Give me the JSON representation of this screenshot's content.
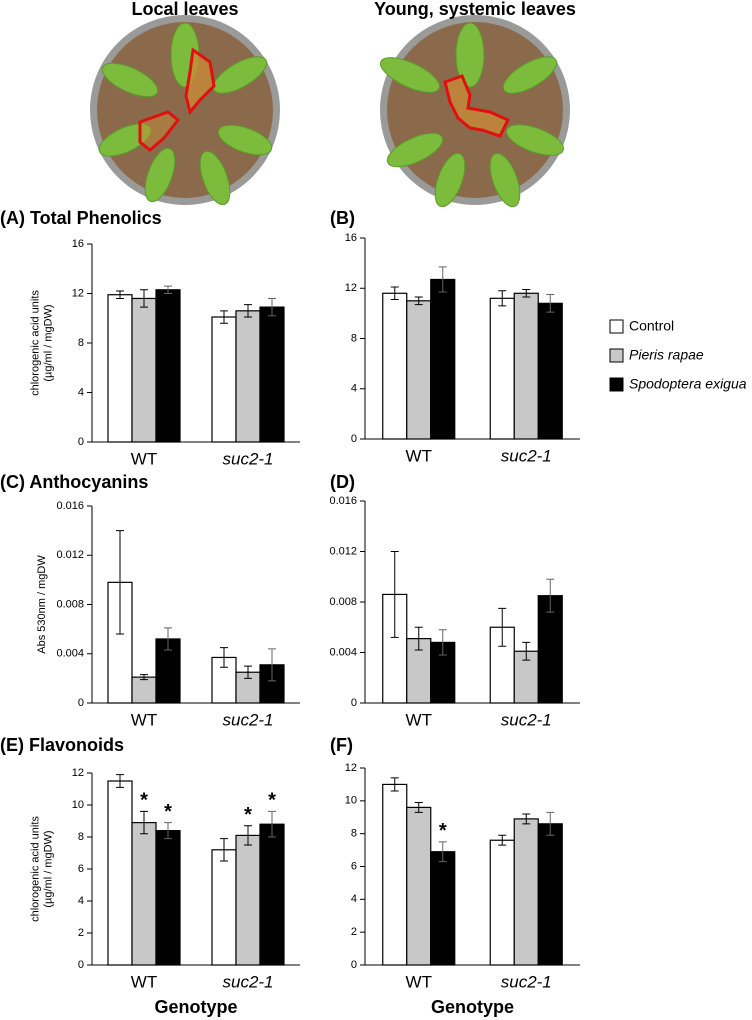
{
  "photos": [
    {
      "title": "Local leaves"
    },
    {
      "title": "Young, systemic leaves"
    }
  ],
  "legend": [
    {
      "name": "Control",
      "color": "#ffffff"
    },
    {
      "name": "Pieris rapae",
      "color": "#c8c8c8"
    },
    {
      "name": "Spodoptera exigua",
      "color": "#000000"
    }
  ],
  "chart_data": [
    {
      "type": "bar",
      "title": "(A) Total Phenolics",
      "ylabel": [
        "chlorogenic acid units",
        "(µg/ml / mgDW)"
      ],
      "categories": [
        "WT",
        "suc2-1"
      ],
      "ylim": [
        0,
        16
      ],
      "yticks": [
        0,
        4,
        8,
        12,
        16
      ],
      "series": [
        {
          "color": "#ffffff",
          "values": [
            11.9,
            10.1
          ],
          "errors": [
            0.3,
            0.5
          ]
        },
        {
          "color": "#c8c8c8",
          "values": [
            11.6,
            10.6
          ],
          "errors": [
            0.7,
            0.5
          ]
        },
        {
          "color": "#000000",
          "values": [
            12.3,
            10.9
          ],
          "errors": [
            0.3,
            0.7
          ]
        }
      ]
    },
    {
      "type": "bar",
      "title": "(B)",
      "categories": [
        "WT",
        "suc2-1"
      ],
      "ylim": [
        0,
        16
      ],
      "yticks": [
        0,
        4,
        8,
        12,
        16
      ],
      "series": [
        {
          "color": "#ffffff",
          "values": [
            11.6,
            11.2
          ],
          "errors": [
            0.5,
            0.6
          ]
        },
        {
          "color": "#c8c8c8",
          "values": [
            11.0,
            11.6
          ],
          "errors": [
            0.3,
            0.3
          ]
        },
        {
          "color": "#000000",
          "values": [
            12.7,
            10.8
          ],
          "errors": [
            1.0,
            0.7
          ]
        }
      ]
    },
    {
      "type": "bar",
      "title": "(C) Anthocyanins",
      "ylabel": [
        "Abs 530nm / mgDW"
      ],
      "categories": [
        "WT",
        "suc2-1"
      ],
      "ylim": [
        0,
        0.016
      ],
      "yticks": [
        0,
        0.004,
        0.008,
        0.012,
        0.016
      ],
      "series": [
        {
          "color": "#ffffff",
          "values": [
            0.0098,
            0.0037
          ],
          "errors": [
            0.0042,
            0.0008
          ]
        },
        {
          "color": "#c8c8c8",
          "values": [
            0.0021,
            0.0025
          ],
          "errors": [
            0.0002,
            0.0005
          ]
        },
        {
          "color": "#000000",
          "values": [
            0.0052,
            0.0031
          ],
          "errors": [
            0.0009,
            0.0013
          ]
        }
      ]
    },
    {
      "type": "bar",
      "title": "(D)",
      "categories": [
        "WT",
        "suc2-1"
      ],
      "ylim": [
        0,
        0.016
      ],
      "yticks": [
        0,
        0.004,
        0.008,
        0.012,
        0.016
      ],
      "series": [
        {
          "color": "#ffffff",
          "values": [
            0.0086,
            0.006
          ],
          "errors": [
            0.0034,
            0.0015
          ]
        },
        {
          "color": "#c8c8c8",
          "values": [
            0.0051,
            0.0041
          ],
          "errors": [
            0.0009,
            0.0007
          ]
        },
        {
          "color": "#000000",
          "values": [
            0.0048,
            0.0085
          ],
          "errors": [
            0.001,
            0.0013
          ]
        }
      ]
    },
    {
      "type": "bar",
      "title": "(E) Flavonoids",
      "ylabel": [
        "chlorogenic acid units",
        "(µg/ml / mgDW)"
      ],
      "xlabel": "Genotype",
      "categories": [
        "WT",
        "suc2-1"
      ],
      "ylim": [
        0,
        12
      ],
      "yticks": [
        0,
        2,
        4,
        6,
        8,
        10,
        12
      ],
      "series": [
        {
          "color": "#ffffff",
          "values": [
            11.5,
            7.2
          ],
          "errors": [
            0.4,
            0.7
          ]
        },
        {
          "color": "#c8c8c8",
          "values": [
            8.9,
            8.1
          ],
          "errors": [
            0.7,
            0.6
          ],
          "significance": [
            "*",
            "*"
          ]
        },
        {
          "color": "#000000",
          "values": [
            8.4,
            8.8
          ],
          "errors": [
            0.5,
            0.8
          ],
          "significance": [
            "*",
            "*"
          ]
        }
      ]
    },
    {
      "type": "bar",
      "title": "(F)",
      "xlabel": "Genotype",
      "categories": [
        "WT",
        "suc2-1"
      ],
      "ylim": [
        0,
        12
      ],
      "yticks": [
        0,
        2,
        4,
        6,
        8,
        10,
        12
      ],
      "series": [
        {
          "color": "#ffffff",
          "values": [
            11.0,
            7.6
          ],
          "errors": [
            0.4,
            0.3
          ]
        },
        {
          "color": "#c8c8c8",
          "values": [
            9.6,
            8.9
          ],
          "errors": [
            0.3,
            0.3
          ]
        },
        {
          "color": "#000000",
          "values": [
            6.9,
            8.6
          ],
          "errors": [
            0.6,
            0.7
          ],
          "significance": [
            "*",
            null
          ]
        }
      ]
    }
  ]
}
